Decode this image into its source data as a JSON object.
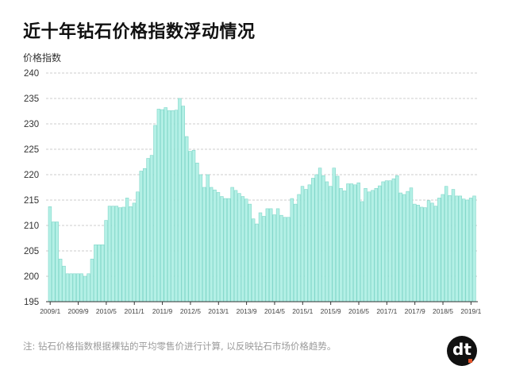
{
  "header": {
    "title": "近十年钻石价格指数浮动情况",
    "y_axis_label": "价格指数"
  },
  "footer": {
    "note": "注: 钻石价格指数根据裸钻的平均零售价进行计算, 以反映钻石市场价格趋势。",
    "logo_text": "dt"
  },
  "colors": {
    "bar_fill": "#b4f0e6",
    "bar_stroke": "#7fd6c8",
    "grid": "#cccccc",
    "axis": "#333333",
    "logo_bg": "#111111",
    "logo_accent": "#e2542b"
  },
  "chart_data": {
    "type": "bar",
    "title": "近十年钻石价格指数浮动情况",
    "xlabel": "",
    "ylabel": "价格指数",
    "ylim": [
      195,
      240
    ],
    "yticks": [
      195,
      200,
      205,
      210,
      215,
      220,
      225,
      230,
      235,
      240
    ],
    "grid": true,
    "legend": null,
    "x_tick_labels": [
      "2009/1",
      "2009/9",
      "2010/5",
      "2011/1",
      "2011/9",
      "2012/5",
      "2013/1",
      "2013/9",
      "2014/5",
      "2015/1",
      "2015/9",
      "2016/5",
      "2017/1",
      "2017/9",
      "2018/5",
      "2019/1"
    ],
    "start_month": "2009/1",
    "end_month": "2019/1",
    "values": [
      213.7,
      210.7,
      210.7,
      203.4,
      202.0,
      200.5,
      200.5,
      200.5,
      200.5,
      200.5,
      200.0,
      200.5,
      203.4,
      206.2,
      206.2,
      206.2,
      211.0,
      213.8,
      213.8,
      213.8,
      213.5,
      213.6,
      215.4,
      213.7,
      214.4,
      216.6,
      220.7,
      221.2,
      223.2,
      223.8,
      229.7,
      232.9,
      232.8,
      233.2,
      232.6,
      232.6,
      232.7,
      235.0,
      233.5,
      227.5,
      224.6,
      224.8,
      222.3,
      220.0,
      217.5,
      220.0,
      217.5,
      217.0,
      216.5,
      215.7,
      215.3,
      215.3,
      217.5,
      216.9,
      216.3,
      215.7,
      215.2,
      214.2,
      211.3,
      210.3,
      212.5,
      211.8,
      213.3,
      213.3,
      212.1,
      213.3,
      212.0,
      211.6,
      211.6,
      215.3,
      214.2,
      216.1,
      217.7,
      217.1,
      218.0,
      219.3,
      220.0,
      221.3,
      219.8,
      218.6,
      217.7,
      221.3,
      219.7,
      217.3,
      216.8,
      218.2,
      218.2,
      218.0,
      218.4,
      214.7,
      217.3,
      216.6,
      216.9,
      217.3,
      217.8,
      218.6,
      218.8,
      218.8,
      219.2,
      219.8,
      216.4,
      216.1,
      216.7,
      217.4,
      214.2,
      214.0,
      213.6,
      213.5,
      214.9,
      214.4,
      213.8,
      215.4,
      216.1,
      217.7,
      215.9,
      217.1,
      215.8,
      215.8,
      215.2,
      215.0,
      215.4,
      215.8
    ]
  }
}
